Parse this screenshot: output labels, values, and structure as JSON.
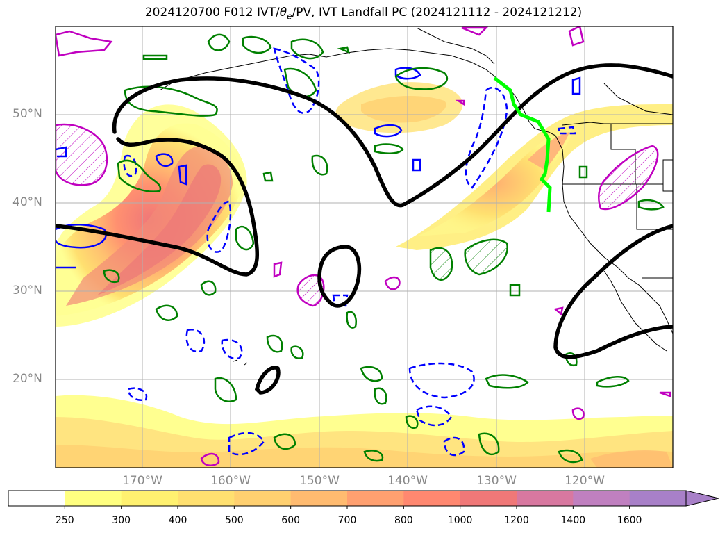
{
  "title": {
    "prefix": "2024120700 F012 IVT/",
    "theta": "θ",
    "theta_sub": "e",
    "suffix": "/PV, IVT Landfall PC (2024121112 - 2024121212)"
  },
  "map": {
    "lat_labels": [
      "50°N",
      "40°N",
      "30°N",
      "20°N"
    ],
    "lon_labels": [
      "170°W",
      "160°W",
      "150°W",
      "140°W",
      "130°W",
      "120°W"
    ],
    "lat_values": [
      50,
      40,
      30,
      20
    ],
    "lon_values": [
      -170,
      -160,
      -150,
      -140,
      -130,
      -120
    ],
    "extent": {
      "lon_min": -180,
      "lon_max": -110,
      "lat_min": 10,
      "lat_max": 60
    }
  },
  "colorbar": {
    "labels": [
      "250",
      "300",
      "400",
      "500",
      "600",
      "700",
      "800",
      "1000",
      "1200",
      "1400",
      "1600"
    ],
    "colors": [
      "#ffffff",
      "#ffff80",
      "#fff170",
      "#ffe070",
      "#ffd070",
      "#ffbb70",
      "#ffa070",
      "#ff8870",
      "#f07878",
      "#d878a0",
      "#c080c0",
      "#a880c8"
    ]
  },
  "colors": {
    "green_contour": "#008000",
    "blue_contour": "#0000ff",
    "magenta_contour": "#c000c0",
    "black_contour": "#000000",
    "landfall_line": "#00ff00"
  }
}
